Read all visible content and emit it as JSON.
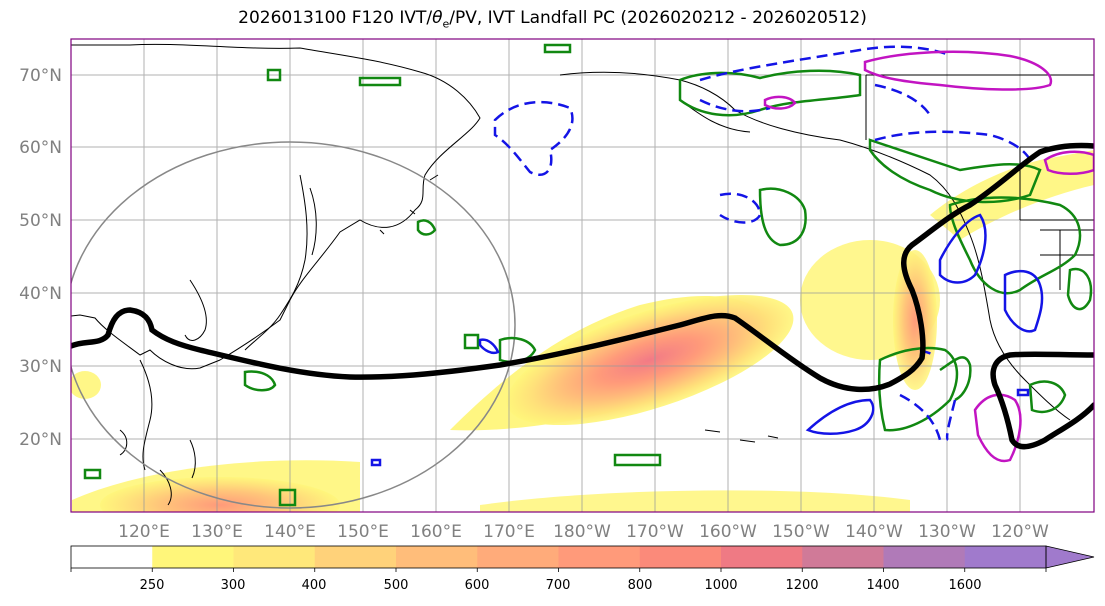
{
  "title_prefix": "2026013100 F120 IVT/",
  "title_theta": "θ",
  "title_sub": "e",
  "title_suffix": "/PV, IVT Landfall PC (2026020212 - 2026020512)",
  "lat_labels": [
    "70°N",
    "60°N",
    "50°N",
    "40°N",
    "30°N",
    "20°N"
  ],
  "lon_labels": [
    "120°E",
    "130°E",
    "140°E",
    "150°E",
    "160°E",
    "170°E",
    "180°W",
    "170°W",
    "160°W",
    "150°W",
    "140°W",
    "130°W",
    "120°W"
  ],
  "colorbar": {
    "levels": [
      "250",
      "300",
      "400",
      "500",
      "600",
      "700",
      "800",
      "1000",
      "1200",
      "1400",
      "1600"
    ],
    "colors": [
      "#ffffff",
      "#fff67a",
      "#ffe87a",
      "#ffd27a",
      "#ffbd7a",
      "#ffab7a",
      "#ff9a7a",
      "#fb8a7a",
      "#ef7a84",
      "#d07a98",
      "#b07ab8",
      "#a07acc"
    ]
  }
}
